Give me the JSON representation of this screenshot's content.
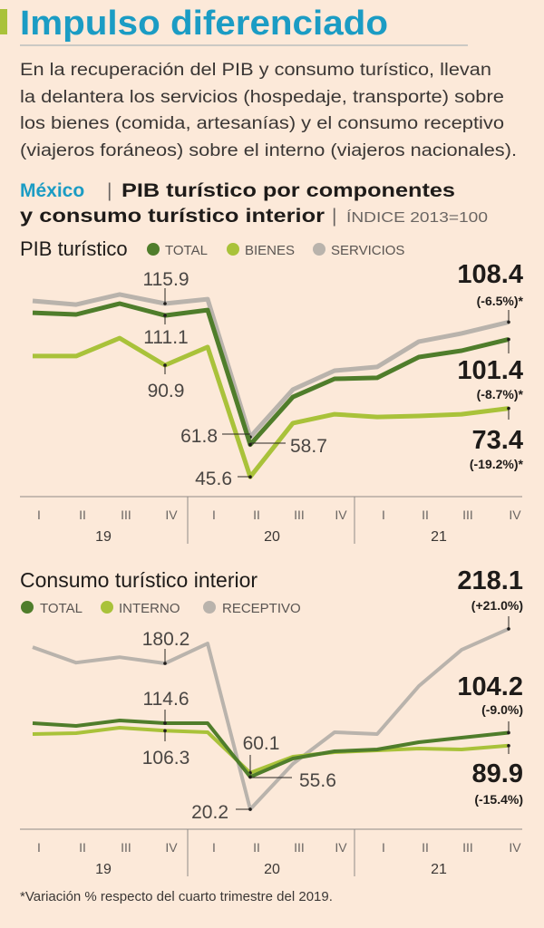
{
  "header": {
    "title": "Impulso diferenciado",
    "paragraph": [
      "En la recuperación del PIB y consumo turístico, llevan",
      "la delantera los servicios (hospedaje, transporte) sobre",
      "los bienes (comida, artesanías) y el consumo receptivo",
      "(viajeros foráneos) sobre el interno (viajeros nacionales)."
    ],
    "country": "México",
    "separator": "|",
    "subtitle_line1": "PIB turístico por componentes",
    "subtitle_line2": "y consumo turístico interior",
    "index_note": "ÍNDICE 2013=100"
  },
  "colors": {
    "title": "#1b9cc4",
    "accent_bar": "#a9c23a",
    "total": "#4f7d2b",
    "light_green": "#a9c23a",
    "gray": "#b9b3ac",
    "background": "#fce9d9"
  },
  "chart_data": [
    {
      "type": "line",
      "title": "PIB turístico",
      "quarters": [
        "I",
        "II",
        "III",
        "IV",
        "I",
        "II",
        "III",
        "IV",
        "I",
        "II",
        "III",
        "IV"
      ],
      "years": [
        "19",
        "20",
        "21"
      ],
      "series": [
        {
          "name": "SERVICIOS",
          "color": "#b9b3ac",
          "values": [
            117.0,
            115.5,
            119.6,
            115.9,
            117.7,
            61.8,
            81.0,
            88.7,
            90.2,
            100.5,
            103.8,
            108.4
          ]
        },
        {
          "name": "TOTAL",
          "color": "#4f7d2b",
          "values": [
            112.2,
            111.5,
            115.9,
            111.1,
            113.3,
            58.7,
            78.0,
            85.4,
            85.8,
            94.2,
            96.8,
            101.4
          ]
        },
        {
          "name": "BIENES",
          "color": "#a9c23a",
          "values": [
            94.6,
            94.6,
            101.9,
            90.9,
            98.3,
            45.6,
            67.4,
            71.0,
            69.9,
            70.3,
            71.0,
            73.4
          ]
        }
      ],
      "annotations": [
        "115.9",
        "111.1",
        "90.9",
        "61.8",
        "58.7",
        "45.6"
      ],
      "end_labels": [
        {
          "value": "108.4",
          "change": "(-6.5%)*"
        },
        {
          "value": "101.4",
          "change": "(-8.7%)*"
        },
        {
          "value": "73.4",
          "change": "(-19.2%)*"
        }
      ]
    },
    {
      "type": "line",
      "title": "Consumo turístico interior",
      "quarters": [
        "I",
        "II",
        "III",
        "IV",
        "I",
        "II",
        "III",
        "IV",
        "I",
        "II",
        "III",
        "IV"
      ],
      "years": [
        "19",
        "20",
        "21"
      ],
      "series": [
        {
          "name": "RECEPTIVO",
          "color": "#b9b3ac",
          "values": [
            198.0,
            181.0,
            187.0,
            180.2,
            202.0,
            20.2,
            70.0,
            104.7,
            102.7,
            155.3,
            195.0,
            218.1
          ]
        },
        {
          "name": "INTERNO",
          "color": "#a9c23a",
          "values": [
            102.7,
            103.7,
            109.6,
            106.3,
            104.7,
            60.1,
            77.8,
            82.8,
            84.8,
            86.8,
            85.8,
            89.9
          ]
        },
        {
          "name": "TOTAL",
          "color": "#4f7d2b",
          "values": [
            114.6,
            111.6,
            117.6,
            114.6,
            114.6,
            55.6,
            75.8,
            83.8,
            85.8,
            93.7,
            98.7,
            104.2
          ]
        }
      ],
      "legend_order": [
        "TOTAL",
        "INTERNO",
        "RECEPTIVO"
      ],
      "annotations": [
        "180.2",
        "114.6",
        "106.3",
        "60.1",
        "55.6",
        "20.2"
      ],
      "end_labels": [
        {
          "value": "218.1",
          "change": "(+21.0%)"
        },
        {
          "value": "104.2",
          "change": "(-9.0%)"
        },
        {
          "value": "89.9",
          "change": "(-15.4%)"
        }
      ]
    }
  ],
  "footnote": "*Variación % respecto del cuarto trimestre del 2019."
}
